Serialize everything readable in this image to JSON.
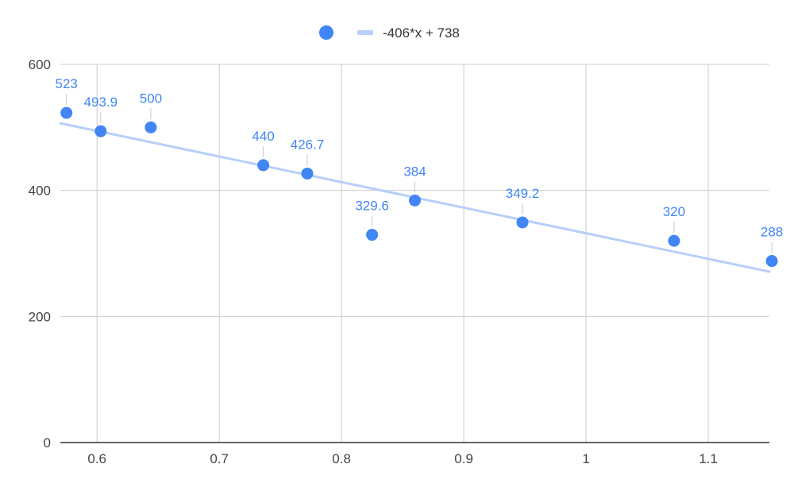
{
  "chart_data": {
    "type": "scatter",
    "xlim": [
      0.57,
      1.15
    ],
    "ylim": [
      0,
      600
    ],
    "x_ticks": [
      "0.6",
      "0.7",
      "0.8",
      "0.9",
      "1",
      "1.1"
    ],
    "y_ticks": [
      "0",
      "200",
      "400",
      "600"
    ],
    "grid": true,
    "legend_position": "top",
    "trendline": {
      "label": "-406*x + 738",
      "slope": -406,
      "intercept": 738
    },
    "points": [
      {
        "x": 0.575,
        "y": 523,
        "label": "523"
      },
      {
        "x": 0.603,
        "y": 493.9,
        "label": "493.9"
      },
      {
        "x": 0.644,
        "y": 500,
        "label": "500"
      },
      {
        "x": 0.736,
        "y": 440,
        "label": "440"
      },
      {
        "x": 0.772,
        "y": 426.7,
        "label": "426.7"
      },
      {
        "x": 0.825,
        "y": 329.6,
        "label": "329.6"
      },
      {
        "x": 0.86,
        "y": 384,
        "label": "384"
      },
      {
        "x": 0.948,
        "y": 349.2,
        "label": "349.2"
      },
      {
        "x": 1.072,
        "y": 320,
        "label": "320"
      },
      {
        "x": 1.152,
        "y": 288,
        "label": "288"
      }
    ],
    "colors": {
      "points": "#4285f4",
      "trendline": "#b7cff9",
      "labels": "#4285f4",
      "grid": "#cccccc",
      "axis": "#333333"
    }
  }
}
